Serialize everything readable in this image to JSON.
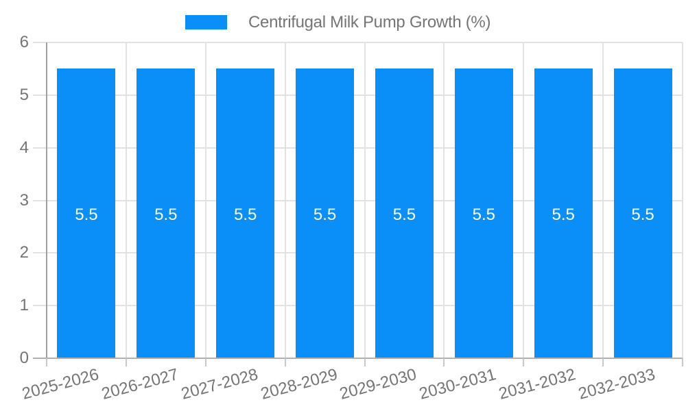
{
  "chart_data": {
    "type": "bar",
    "title": "Centrifugal Milk Pump Growth (%)",
    "categories": [
      "2025-2026",
      "2026-2027",
      "2027-2028",
      "2028-2029",
      "2029-2030",
      "2030-2031",
      "2031-2032",
      "2032-2033"
    ],
    "values": [
      5.5,
      5.5,
      5.5,
      5.5,
      5.5,
      5.5,
      5.5,
      5.5
    ],
    "bar_value_labels": [
      "5.5",
      "5.5",
      "5.5",
      "5.5",
      "5.5",
      "5.5",
      "5.5",
      "5.5"
    ],
    "xlabel": "",
    "ylabel": "",
    "ylim": [
      0,
      6
    ],
    "yticks": [
      0,
      1,
      2,
      3,
      4,
      5,
      6
    ],
    "grid": true,
    "legend_position": "top-center",
    "x_label_rotation_deg": -15,
    "colors": {
      "bar": "#0a8ff8",
      "bar_label_text": "#ffffff",
      "axis_text": "#757575",
      "legend_text": "#757575",
      "gridline": "#e2e2e2",
      "y_axis_line": "#a0a0a0",
      "x_axis_line": "#b0b0b0",
      "tick_mark": "#c8c8c8",
      "background": "#ffffff"
    }
  }
}
